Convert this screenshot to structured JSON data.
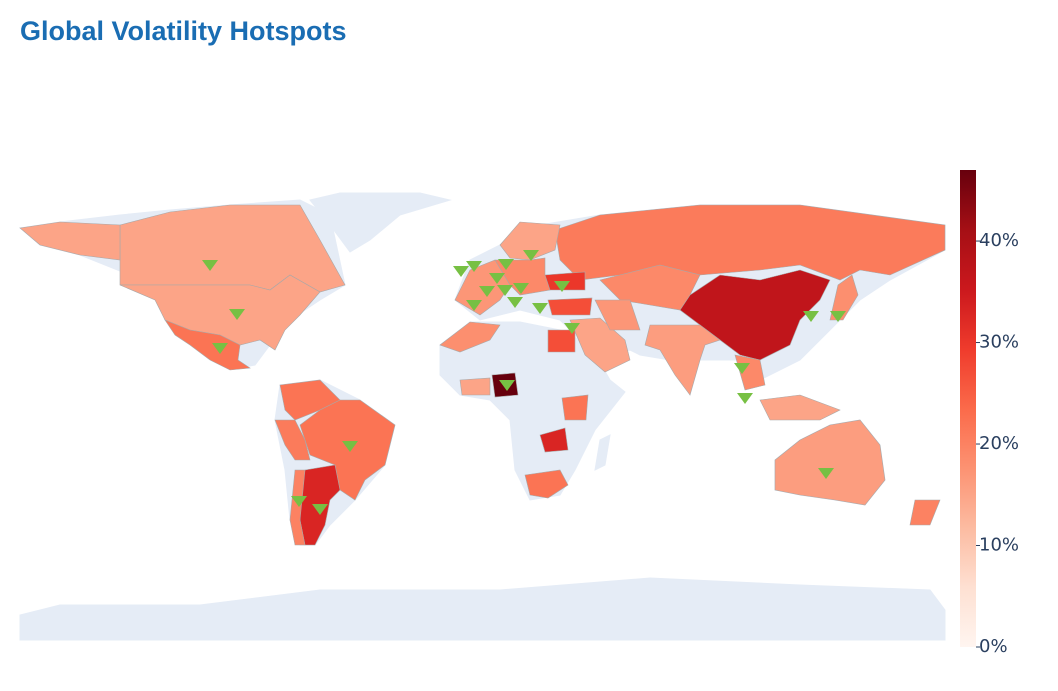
{
  "chart_data": {
    "type": "choropleth",
    "title": "Global Volatility Hotspots",
    "values": [
      15,
      15,
      22,
      22,
      21,
      22,
      33,
      20,
      21,
      37,
      16,
      19,
      17,
      15,
      19,
      30,
      27,
      15,
      17,
      27,
      47,
      18,
      22,
      33,
      22,
      16,
      18,
      15,
      19,
      20,
      15
    ],
    "colorscale": [
      "#fff5f0",
      "#fee0d2",
      "#fcbba1",
      "#fc9272",
      "#fb6a4a",
      "#ef3b2c",
      "#cb181d",
      "#a50f15",
      "#67000d"
    ],
    "zlim": [
      0,
      47
    ],
    "zticks": [
      {
        "value": 0,
        "label": "0%"
      },
      {
        "value": 10,
        "label": "10%"
      },
      {
        "value": 20,
        "label": "20%"
      },
      {
        "value": 30,
        "label": "30%"
      },
      {
        "value": 40,
        "label": "40%"
      }
    ],
    "marker_color": "#77c043"
  }
}
